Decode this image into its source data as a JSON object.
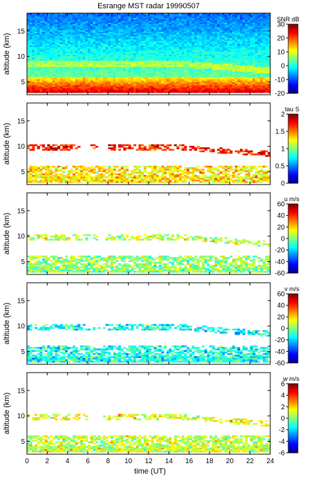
{
  "chart_data": {
    "type": "heatmap",
    "title": "Esrange MST radar 19990507",
    "xlabel": "time (UT)",
    "xlim": [
      0,
      24
    ],
    "x_ticks": [
      0,
      2,
      4,
      6,
      8,
      10,
      12,
      14,
      16,
      18,
      20,
      22,
      24
    ],
    "x_tick_labels": [
      "0",
      "2",
      "4",
      "6",
      "8",
      "10",
      "12",
      "14",
      "16",
      "18",
      "20",
      "22",
      "24"
    ],
    "panels": [
      {
        "ylabel": "altitude (km)",
        "ylim": [
          2.5,
          18.5
        ],
        "y_ticks": [
          5,
          10,
          15
        ],
        "y_tick_labels": [
          "5",
          "10",
          "15"
        ],
        "colorbar_label": "SNR dB",
        "clim": [
          -20,
          30
        ],
        "cbar_ticks": [
          -20,
          -10,
          0,
          10,
          20,
          30
        ],
        "cbar_tick_labels": [
          "-20",
          "-10",
          "0",
          "10",
          "20",
          "30"
        ],
        "colormap": "jet",
        "coverage": "full",
        "description_values": [
          {
            "altitude_km": [
              2.9,
              4.0
            ],
            "value": 26
          },
          {
            "altitude_km": [
              4.0,
              5.0
            ],
            "value": 18
          },
          {
            "altitude_km": [
              5.0,
              6.0
            ],
            "value": 10
          },
          {
            "altitude_km": [
              6.0,
              8.5
            ],
            "value": 2
          },
          {
            "altitude_km": [
              8.5,
              9.5
            ],
            "value": 4
          },
          {
            "altitude_km": [
              9.5,
              11.0
            ],
            "value": 0
          },
          {
            "altitude_km": [
              11.0,
              18.5
            ],
            "value": -8
          }
        ]
      },
      {
        "ylabel": "altitude (km)",
        "ylim": [
          2.5,
          18.5
        ],
        "y_ticks": [
          5,
          10,
          15
        ],
        "y_tick_labels": [
          "5",
          "10",
          "15"
        ],
        "colorbar_label": "tau S",
        "clim": [
          0,
          2
        ],
        "cbar_ticks": [
          0,
          0.5,
          1,
          1.5,
          2
        ],
        "cbar_tick_labels": [
          "0",
          "0.5",
          "1",
          "1.5",
          "2"
        ],
        "colormap": "jet",
        "coverage": "sparse",
        "description_values": [
          {
            "altitude_km": [
              2.9,
              6.3
            ],
            "value": 1.3
          },
          {
            "altitude_km": [
              8.8,
              10.5
            ],
            "value": 1.7
          }
        ]
      },
      {
        "ylabel": "altitude (km)",
        "ylim": [
          2.5,
          18.5
        ],
        "y_ticks": [
          5,
          10,
          15
        ],
        "y_tick_labels": [
          "5",
          "10",
          "15"
        ],
        "colorbar_label": "u m/s",
        "clim": [
          -60,
          60
        ],
        "cbar_ticks": [
          -60,
          -40,
          -20,
          0,
          20,
          40,
          60
        ],
        "cbar_tick_labels": [
          "-60",
          "-40",
          "-20",
          "0",
          "20",
          "40",
          "60"
        ],
        "colormap": "jet",
        "coverage": "sparse",
        "description_values": [
          {
            "altitude_km": [
              2.9,
              6.3
            ],
            "value": 2
          },
          {
            "altitude_km": [
              8.8,
              10.5
            ],
            "value": 8
          }
        ]
      },
      {
        "ylabel": "altitude (km)",
        "ylim": [
          2.5,
          18.5
        ],
        "y_ticks": [
          5,
          10,
          15
        ],
        "y_tick_labels": [
          "5",
          "10",
          "15"
        ],
        "colorbar_label": "v m/s",
        "clim": [
          -60,
          60
        ],
        "cbar_ticks": [
          -60,
          -40,
          -20,
          0,
          20,
          40,
          60
        ],
        "cbar_tick_labels": [
          "-60",
          "-40",
          "-20",
          "0",
          "20",
          "40",
          "60"
        ],
        "colormap": "jet",
        "coverage": "sparse",
        "description_values": [
          {
            "altitude_km": [
              2.9,
              6.3
            ],
            "value": -12
          },
          {
            "altitude_km": [
              8.8,
              10.5
            ],
            "value": -14
          }
        ]
      },
      {
        "ylabel": "altitude (km)",
        "ylim": [
          2.5,
          18.5
        ],
        "y_ticks": [
          5,
          10,
          15
        ],
        "y_tick_labels": [
          "5",
          "10",
          "15"
        ],
        "colorbar_label": "w m/s",
        "clim": [
          -6,
          6
        ],
        "cbar_ticks": [
          -6,
          -4,
          -2,
          0,
          2,
          4,
          6
        ],
        "cbar_tick_labels": [
          "-6",
          "-4",
          "-2",
          "0",
          "2",
          "4",
          "6"
        ],
        "colormap": "jet",
        "coverage": "sparse",
        "description_values": [
          {
            "altitude_km": [
              2.9,
              6.3
            ],
            "value": 0.8
          },
          {
            "altitude_km": [
              8.8,
              10.5
            ],
            "value": 1.2
          }
        ]
      }
    ]
  }
}
